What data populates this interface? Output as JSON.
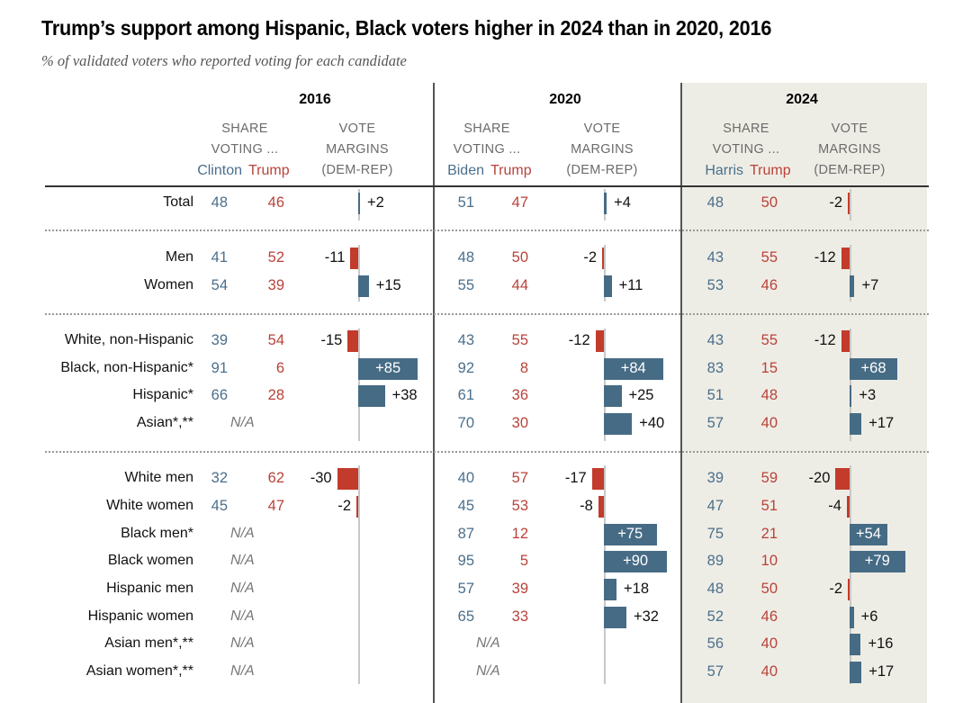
{
  "title": "Trump’s support among Hispanic, Black voters higher in 2024 than in 2020, 2016",
  "subtitle": "% of validated voters who reported voting for each candidate",
  "colors": {
    "dem": "#4a6f8c",
    "rep": "#b8423a",
    "dem_bar": "#466b85",
    "rep_bar": "#c23b2b",
    "highlight_bg": "#eeede5"
  },
  "headers": {
    "share_line1": "SHARE",
    "share_line2": "VOTING ...",
    "margin_line1": "VOTE",
    "margin_line2": "MARGINS",
    "margin_line3": "(DEM-REP)"
  },
  "years": [
    {
      "year": "2016",
      "dem": "Clinton",
      "rep": "Trump"
    },
    {
      "year": "2020",
      "dem": "Biden",
      "rep": "Trump"
    },
    {
      "year": "2024",
      "dem": "Harris",
      "rep": "Trump"
    }
  ],
  "na_label": "N/A",
  "chart_data": {
    "type": "table",
    "title": "Trump’s support among Hispanic, Black voters higher in 2024 than in 2020, 2016",
    "subtitle": "% of validated voters who reported voting for each candidate",
    "columns": [
      "2016 Clinton",
      "2016 Trump",
      "2016 Margin",
      "2020 Biden",
      "2020 Trump",
      "2020 Margin",
      "2024 Harris",
      "2024 Trump",
      "2024 Margin"
    ],
    "groups": [
      [
        0
      ],
      [
        1,
        2
      ],
      [
        3,
        4,
        5,
        6
      ],
      [
        7,
        8,
        9,
        10,
        11,
        12,
        13,
        14
      ]
    ],
    "rows": [
      {
        "label": "Total",
        "y2016": [
          48,
          46,
          2
        ],
        "y2020": [
          51,
          47,
          4
        ],
        "y2024": [
          48,
          50,
          -2
        ]
      },
      {
        "label": "Men",
        "y2016": [
          41,
          52,
          -11
        ],
        "y2020": [
          48,
          50,
          -2
        ],
        "y2024": [
          43,
          55,
          -12
        ]
      },
      {
        "label": "Women",
        "y2016": [
          54,
          39,
          15
        ],
        "y2020": [
          55,
          44,
          11
        ],
        "y2024": [
          53,
          46,
          7
        ]
      },
      {
        "label": "White, non-Hispanic",
        "y2016": [
          39,
          54,
          -15
        ],
        "y2020": [
          43,
          55,
          -12
        ],
        "y2024": [
          43,
          55,
          -12
        ]
      },
      {
        "label": "Black, non-Hispanic*",
        "y2016": [
          91,
          6,
          85
        ],
        "y2020": [
          92,
          8,
          84
        ],
        "y2024": [
          83,
          15,
          68
        ]
      },
      {
        "label": "Hispanic*",
        "y2016": [
          66,
          28,
          38
        ],
        "y2020": [
          61,
          36,
          25
        ],
        "y2024": [
          51,
          48,
          3
        ]
      },
      {
        "label": "Asian*,**",
        "y2016": null,
        "y2020": [
          70,
          30,
          40
        ],
        "y2024": [
          57,
          40,
          17
        ]
      },
      {
        "label": "White men",
        "y2016": [
          32,
          62,
          -30
        ],
        "y2020": [
          40,
          57,
          -17
        ],
        "y2024": [
          39,
          59,
          -20
        ]
      },
      {
        "label": "White women",
        "y2016": [
          45,
          47,
          -2
        ],
        "y2020": [
          45,
          53,
          -8
        ],
        "y2024": [
          47,
          51,
          -4
        ]
      },
      {
        "label": "Black men*",
        "y2016": null,
        "y2020": [
          87,
          12,
          75
        ],
        "y2024": [
          75,
          21,
          54
        ]
      },
      {
        "label": "Black women",
        "y2016": null,
        "y2020": [
          95,
          5,
          90
        ],
        "y2024": [
          89,
          10,
          79
        ]
      },
      {
        "label": "Hispanic men",
        "y2016": null,
        "y2020": [
          57,
          39,
          18
        ],
        "y2024": [
          48,
          50,
          -2
        ]
      },
      {
        "label": "Hispanic women",
        "y2016": null,
        "y2020": [
          65,
          33,
          32
        ],
        "y2024": [
          52,
          46,
          6
        ]
      },
      {
        "label": "Asian men*,**",
        "y2016": null,
        "y2020": null,
        "y2024": [
          56,
          40,
          16
        ]
      },
      {
        "label": "Asian women*,**",
        "y2016": null,
        "y2020": null,
        "y2024": [
          57,
          40,
          17
        ]
      }
    ]
  }
}
